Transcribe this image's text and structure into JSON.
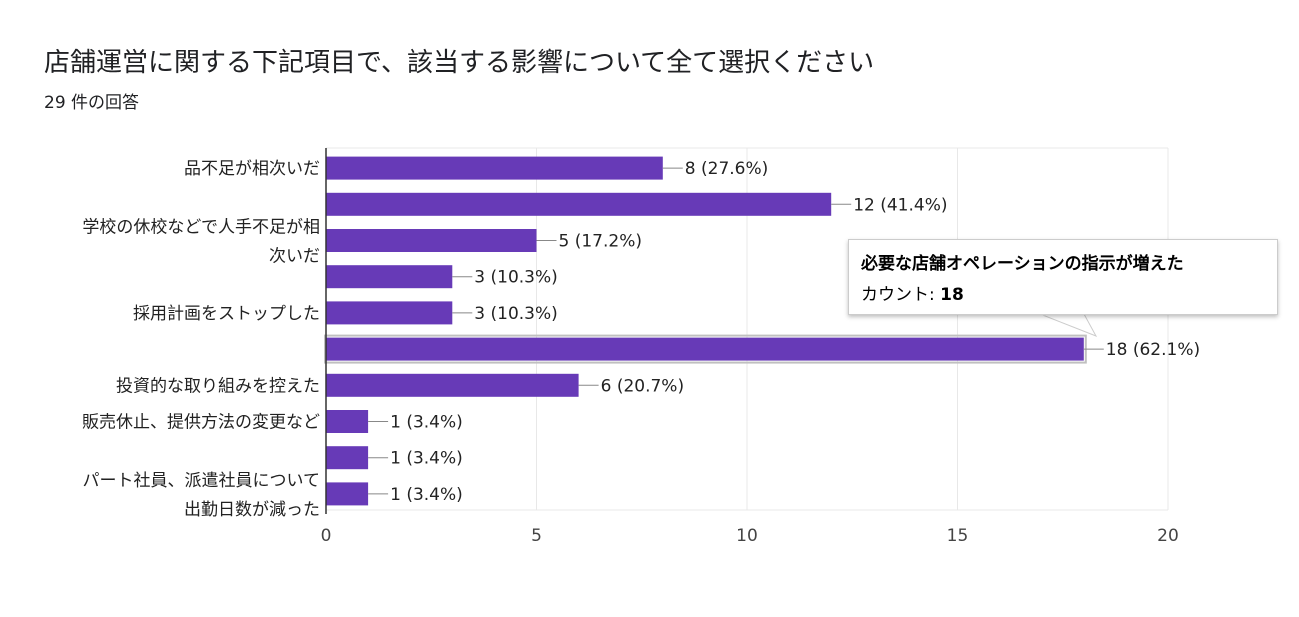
{
  "title": "店舗運営に関する下記項目で、該当する影響について全て選択ください",
  "subtitle": "29 件の回答",
  "colors": {
    "bar": "#673ab7",
    "grid": "#e8e8e8",
    "axis": "#333333",
    "highlight": "#c0c0c0"
  },
  "tooltip": {
    "title": "必要な店舗オペレーションの指示が増えた",
    "count_label": "カウント: ",
    "count_value": "18"
  },
  "chart_data": {
    "type": "bar",
    "orientation": "horizontal",
    "categories": [
      "品不足が相次いだ",
      "",
      "学校の休校などで人手不足が相次いだ",
      "",
      "採用計画をストップした",
      "必要な店舗オペレーションの指示が増えた",
      "投資的な取り組みを控えた",
      "販売休止、提供方法の変更など",
      "",
      "パート社員、派遣社員について出勤日数が減った"
    ],
    "category_lines": [
      [
        "品不足が相次いだ"
      ],
      [],
      [
        "学校の休校などで人手不足が相",
        "次いだ"
      ],
      [],
      [
        "採用計画をストップした"
      ],
      [],
      [
        "投資的な取り組みを控えた"
      ],
      [
        "販売休止、提供方法の変更など"
      ],
      [],
      [
        "パート社員、派遣社員について",
        "出勤日数が減った"
      ]
    ],
    "values": [
      8,
      12,
      5,
      3,
      3,
      18,
      6,
      1,
      1,
      1
    ],
    "data_labels": [
      "8 (27.6%)",
      "12 (41.4%)",
      "5 (17.2%)",
      "3 (10.3%)",
      "3 (10.3%)",
      "18 (62.1%)",
      "6 (20.7%)",
      "1 (3.4%)",
      "1 (3.4%)",
      "1 (3.4%)"
    ],
    "highlighted_index": 5,
    "xlim": [
      0,
      20
    ],
    "xticks": [
      0,
      5,
      10,
      15,
      20
    ],
    "xtick_labels": [
      "0",
      "5",
      "10",
      "15",
      "20"
    ],
    "grid": true,
    "legend": "none"
  }
}
